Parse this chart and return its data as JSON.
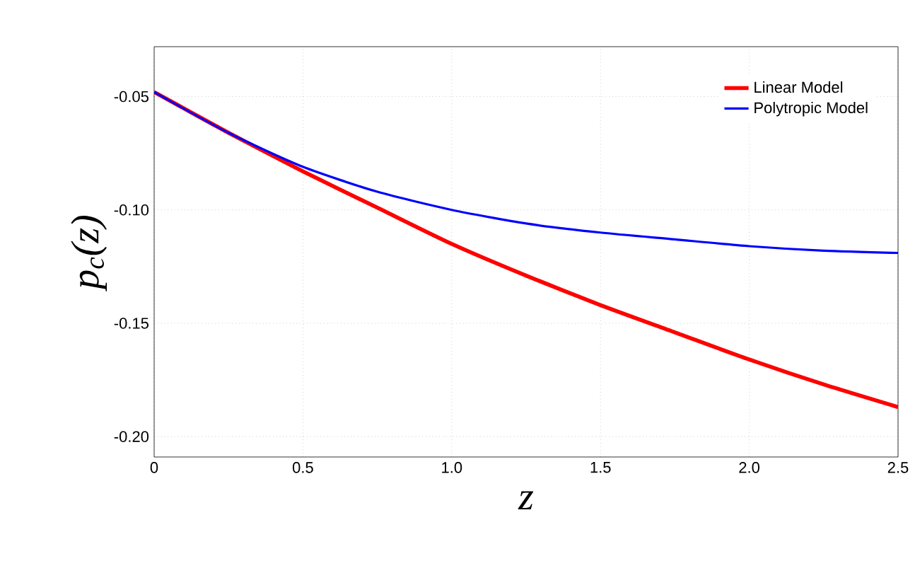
{
  "chart_data": {
    "type": "line",
    "xlabel": "z",
    "ylabel": "p$_{c}$(z)",
    "x": [
      0,
      0.25,
      0.5,
      0.75,
      1.0,
      1.25,
      1.5,
      1.75,
      2.0,
      2.25,
      2.5
    ],
    "series": [
      {
        "name": "Linear Model",
        "color": "#ff0000",
        "values": [
          -0.048,
          -0.066,
          -0.083,
          -0.099,
          -0.115,
          -0.129,
          -0.142,
          -0.154,
          -0.166,
          -0.177,
          -0.187
        ]
      },
      {
        "name": "Polytropic Model",
        "color": "#0000ff",
        "values": [
          -0.048,
          -0.066,
          -0.081,
          -0.092,
          -0.1,
          -0.106,
          -0.11,
          -0.113,
          -0.116,
          -0.118,
          -0.119
        ]
      }
    ],
    "xlim": [
      0,
      2.5
    ],
    "ylim": [
      -0.209,
      -0.028
    ],
    "xticks": [
      {
        "value": 0,
        "label": "0"
      },
      {
        "value": 0.5,
        "label": "0.5"
      },
      {
        "value": 1,
        "label": "1.0"
      },
      {
        "value": 1.5,
        "label": "1.5"
      },
      {
        "value": 2,
        "label": "2.0"
      },
      {
        "value": 2.5,
        "label": "2.5"
      }
    ],
    "yticks": [
      {
        "value": -0.2,
        "label": "-0.20"
      },
      {
        "value": -0.15,
        "label": "-0.15"
      },
      {
        "value": -0.1,
        "label": "-0.10"
      },
      {
        "value": -0.05,
        "label": "-0.05"
      }
    ],
    "grid": true,
    "legend": "top right",
    "marker": "none",
    "line_style": "solid"
  }
}
